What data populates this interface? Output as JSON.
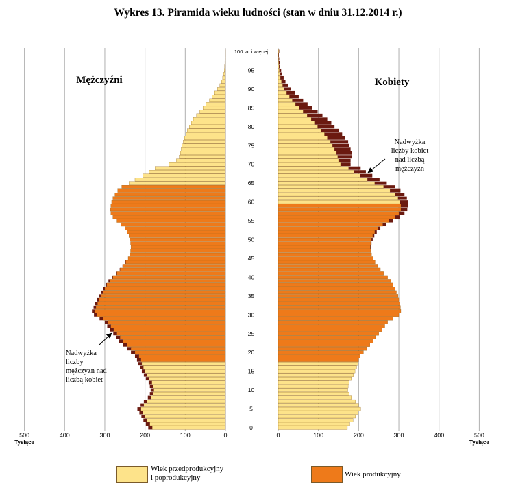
{
  "title": "Wykres 13. Piramida wieku ludności (stan w dniu 31.12.2014 r.)",
  "colors": {
    "pre_post": "#fde38a",
    "productive": "#ee7a1a",
    "surplus": "#6b1a10",
    "bar_stroke": "#8a5a10",
    "grid": "#b0b0b0"
  },
  "chart_data": {
    "type": "bar",
    "orientation": "horizontal-pyramid",
    "title": "Wykres 13. Piramida wieku ludności (stan w dniu 31.12.2014 r.)",
    "unit_label": "Tysiące",
    "xlim": [
      0,
      500
    ],
    "x_ticks": [
      0,
      100,
      200,
      300,
      400,
      500
    ],
    "age_ticks": [
      "0",
      "5",
      "10",
      "15",
      "20",
      "25",
      "30",
      "35",
      "40",
      "45",
      "50",
      "55",
      "60",
      "65",
      "70",
      "75",
      "80",
      "85",
      "90",
      "95",
      "100 lat i więcej"
    ],
    "grid": true,
    "panels": {
      "left": "Mężczyźni",
      "right": "Kobiety"
    },
    "productive_age": {
      "men": [
        18,
        64
      ],
      "women": [
        18,
        59
      ]
    },
    "ages": [
      0,
      1,
      2,
      3,
      4,
      5,
      6,
      7,
      8,
      9,
      10,
      11,
      12,
      13,
      14,
      15,
      16,
      17,
      18,
      19,
      20,
      21,
      22,
      23,
      24,
      25,
      26,
      27,
      28,
      29,
      30,
      31,
      32,
      33,
      34,
      35,
      36,
      37,
      38,
      39,
      40,
      41,
      42,
      43,
      44,
      45,
      46,
      47,
      48,
      49,
      50,
      51,
      52,
      53,
      54,
      55,
      56,
      57,
      58,
      59,
      60,
      61,
      62,
      63,
      64,
      65,
      66,
      67,
      68,
      69,
      70,
      71,
      72,
      73,
      74,
      75,
      76,
      77,
      78,
      79,
      80,
      81,
      82,
      83,
      84,
      85,
      86,
      87,
      88,
      89,
      90,
      91,
      92,
      93,
      94,
      95,
      96,
      97,
      98,
      99,
      100
    ],
    "men": [
      182,
      188,
      195,
      200,
      205,
      210,
      203,
      195,
      185,
      180,
      178,
      180,
      183,
      190,
      195,
      200,
      204,
      208,
      210,
      215,
      225,
      235,
      245,
      255,
      262,
      270,
      278,
      285,
      292,
      305,
      320,
      325,
      322,
      318,
      315,
      310,
      305,
      300,
      295,
      288,
      280,
      270,
      262,
      255,
      248,
      242,
      238,
      236,
      235,
      236,
      238,
      240,
      245,
      250,
      260,
      270,
      280,
      285,
      286,
      285,
      283,
      280,
      275,
      268,
      258,
      240,
      225,
      205,
      190,
      175,
      140,
      122,
      115,
      112,
      110,
      108,
      105,
      102,
      98,
      95,
      90,
      85,
      80,
      72,
      64,
      56,
      48,
      40,
      33,
      27,
      20,
      14,
      10,
      7,
      5,
      3,
      2,
      1.5,
      1,
      0.6,
      1
    ],
    "women": [
      172,
      178,
      186,
      192,
      198,
      205,
      200,
      192,
      182,
      176,
      173,
      174,
      176,
      182,
      187,
      191,
      195,
      198,
      200,
      204,
      212,
      220,
      228,
      236,
      242,
      250,
      258,
      265,
      272,
      285,
      300,
      305,
      304,
      302,
      300,
      298,
      294,
      290,
      285,
      280,
      272,
      262,
      254,
      247,
      241,
      236,
      232,
      230,
      229,
      230,
      232,
      235,
      240,
      248,
      260,
      275,
      290,
      300,
      305,
      305,
      303,
      298,
      290,
      278,
      262,
      240,
      222,
      204,
      188,
      175,
      155,
      150,
      148,
      145,
      140,
      135,
      130,
      122,
      115,
      107,
      98,
      90,
      82,
      72,
      62,
      52,
      43,
      35,
      28,
      21,
      15,
      11,
      8,
      5.5,
      4,
      2.8,
      2,
      1.4,
      1,
      0.7,
      1.5
    ],
    "men_surplus": [
      10,
      10,
      9,
      9,
      9,
      9,
      8,
      8,
      8,
      8,
      8,
      8,
      8,
      8,
      8,
      8,
      9,
      9,
      10,
      10,
      10,
      10,
      10,
      10,
      9,
      9,
      9,
      9,
      8,
      8,
      7,
      7,
      6,
      6,
      5,
      5,
      4,
      4,
      3,
      3,
      2,
      2,
      1,
      1,
      1,
      0,
      0,
      0,
      0,
      0,
      0,
      0,
      0,
      0,
      0,
      0,
      0,
      0,
      0,
      0,
      0,
      0,
      0,
      0,
      0,
      0,
      0,
      0,
      0,
      0,
      0,
      0,
      0,
      0,
      0,
      0,
      0,
      0,
      0,
      0,
      0,
      0,
      0,
      0,
      0,
      0,
      0,
      0,
      0,
      0,
      0,
      0,
      0,
      0,
      0,
      0,
      0,
      0,
      0,
      0,
      0
    ],
    "women_surplus": [
      0,
      0,
      0,
      0,
      0,
      0,
      0,
      0,
      0,
      0,
      0,
      0,
      0,
      0,
      0,
      0,
      0,
      0,
      0,
      0,
      0,
      0,
      0,
      0,
      0,
      0,
      0,
      0,
      0,
      0,
      0,
      0,
      0,
      0,
      0,
      0,
      0,
      0,
      0,
      0,
      0,
      0,
      0,
      0,
      0,
      0,
      0,
      0,
      1,
      2,
      3,
      4,
      5,
      6,
      8,
      10,
      12,
      14,
      16,
      18,
      20,
      22,
      24,
      26,
      28,
      30,
      30,
      30,
      30,
      30,
      25,
      30,
      35,
      38,
      40,
      42,
      44,
      44,
      44,
      44,
      42,
      42,
      40,
      38,
      36,
      33,
      30,
      27,
      23,
      20,
      16,
      13,
      10,
      8,
      6,
      4.5,
      3,
      2,
      1.5,
      1,
      1
    ],
    "annotations": [
      {
        "side": "left",
        "lines": [
          "Nadwyżka",
          "liczby",
          "mężczyzn nad",
          "liczbą kobiet"
        ],
        "age": 27
      },
      {
        "side": "right",
        "lines": [
          "Nadwyżka",
          "liczby kobiet",
          "nad liczbą",
          "mężczyzn"
        ],
        "age": 67
      }
    ],
    "legend": [
      {
        "label_lines": [
          "Wiek przedprodukcyjny",
          "i poprodukcyjny"
        ],
        "color": "#fde38a"
      },
      {
        "label_lines": [
          "Wiek produkcyjny"
        ],
        "color": "#ee7a1a"
      }
    ],
    "legend_placement": "bottom"
  }
}
